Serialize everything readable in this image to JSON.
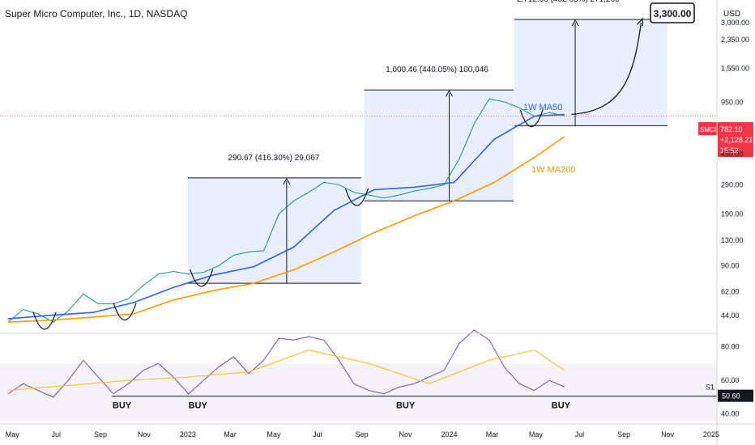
{
  "header": {
    "symbol_title": "Super Micro Computer, Inc., 1D, NASDAQ",
    "currency": "USD"
  },
  "chart_data": [
    {
      "type": "line",
      "title": "Super Micro Computer, Inc., 1D, NASDAQ",
      "yscale": "log",
      "x_ticks": [
        "May",
        "Jul",
        "Sep",
        "Nov",
        "2023",
        "Mar",
        "May",
        "Jul",
        "Sep",
        "Nov",
        "2024",
        "Mar",
        "May",
        "Jul",
        "Sep",
        "Nov",
        "2025"
      ],
      "y_ticks": [
        44,
        62,
        90,
        130,
        190,
        290,
        450,
        950,
        1550,
        2350,
        3000
      ],
      "y_tick_labels": [
        "44.00",
        "62.00",
        "90.00",
        "130.00",
        "190.00",
        "290.00",
        "450.00",
        "950.00",
        "1,550.00",
        "2,350.00",
        "3,000.00"
      ],
      "ylim": [
        34,
        3300
      ],
      "grid": false,
      "series": [
        {
          "name": "SMCI",
          "color": "#089981",
          "x": [
            "2022-04-25",
            "2022-05-16",
            "2022-06-06",
            "2022-06-27",
            "2022-07-18",
            "2022-08-08",
            "2022-08-29",
            "2022-09-19",
            "2022-10-10",
            "2022-10-31",
            "2022-11-21",
            "2022-12-12",
            "2023-01-02",
            "2023-01-23",
            "2023-02-13",
            "2023-03-06",
            "2023-03-27",
            "2023-04-17",
            "2023-05-08",
            "2023-05-29",
            "2023-06-19",
            "2023-07-10",
            "2023-07-31",
            "2023-08-21",
            "2023-09-11",
            "2023-10-02",
            "2023-10-23",
            "2023-11-13",
            "2023-12-04",
            "2023-12-25",
            "2024-01-15",
            "2024-02-05",
            "2024-02-26",
            "2024-03-18",
            "2024-04-08",
            "2024-04-29",
            "2024-05-20",
            "2024-06-10"
          ],
          "y": [
            40,
            48,
            45,
            40,
            47,
            60,
            52,
            52,
            56,
            68,
            80,
            83,
            80,
            82,
            90,
            105,
            110,
            112,
            190,
            230,
            260,
            300,
            290,
            260,
            250,
            240,
            250,
            265,
            275,
            290,
            420,
            700,
            1000,
            960,
            880,
            780,
            820,
            782
          ]
        },
        {
          "name": "1W MA50",
          "color": "#2962ff",
          "x": [
            "2022-04-25",
            "2022-06-20",
            "2022-08-22",
            "2022-10-17",
            "2022-12-12",
            "2023-02-06",
            "2023-04-03",
            "2023-05-29",
            "2023-07-24",
            "2023-09-18",
            "2023-11-13",
            "2024-01-08",
            "2024-03-04",
            "2024-04-29",
            "2024-06-10"
          ],
          "y": [
            42,
            44,
            46,
            53,
            66,
            79,
            89,
            118,
            200,
            270,
            280,
            300,
            560,
            780,
            800
          ]
        },
        {
          "name": "1W MA200",
          "color": "#ff9800",
          "x": [
            "2022-04-25",
            "2022-06-20",
            "2022-08-22",
            "2022-10-17",
            "2022-12-12",
            "2023-02-06",
            "2023-04-03",
            "2023-05-29",
            "2023-07-24",
            "2023-09-18",
            "2023-11-13",
            "2024-01-08",
            "2024-03-04",
            "2024-04-29",
            "2024-06-10"
          ],
          "y": [
            40,
            41,
            43,
            45,
            55,
            63,
            70,
            85,
            110,
            145,
            185,
            230,
            300,
            430,
            580
          ]
        }
      ],
      "annotations": {
        "ranges": [
          {
            "label": "290.67 (416.30%) 29,067",
            "low": 70,
            "high": 320
          },
          {
            "label": "1,000.46 (440.05%) 100,046",
            "low": 230,
            "high": 1140
          },
          {
            "label": "2,712.66 (402.65%) 271,266",
            "low": 680,
            "high": 3150
          }
        ],
        "target_label": "3,300.00",
        "ma50_label": "1W MA50",
        "ma200_label": "1W MA200",
        "price_badge": {
          "symbol": "SMCI",
          "price": "782.10",
          "change": "+2,128.21%",
          "time": "15:52"
        }
      }
    },
    {
      "type": "line",
      "title": "",
      "y_ticks": [
        40,
        60,
        80
      ],
      "y_tick_labels": [
        "40.00",
        "60.00",
        "80.00"
      ],
      "ylim": [
        36,
        87
      ],
      "band": [
        30,
        70
      ],
      "support_level": 50.6,
      "support_label": "50.60",
      "support_name": "S1",
      "buy_labels": [
        "BUY",
        "BUY",
        "BUY",
        "BUY"
      ],
      "series": [
        {
          "name": "RSI",
          "color": "#7e57c2",
          "x": [
            "2022-04-25",
            "2022-05-16",
            "2022-06-06",
            "2022-06-27",
            "2022-07-18",
            "2022-08-08",
            "2022-08-29",
            "2022-09-19",
            "2022-10-10",
            "2022-10-31",
            "2022-11-21",
            "2022-12-12",
            "2023-01-02",
            "2023-01-23",
            "2023-02-13",
            "2023-03-06",
            "2023-03-27",
            "2023-04-17",
            "2023-05-08",
            "2023-05-29",
            "2023-06-19",
            "2023-07-10",
            "2023-07-31",
            "2023-08-21",
            "2023-09-11",
            "2023-10-02",
            "2023-10-23",
            "2023-11-13",
            "2023-12-04",
            "2023-12-25",
            "2024-01-15",
            "2024-02-05",
            "2024-02-26",
            "2024-03-18",
            "2024-04-08",
            "2024-04-29",
            "2024-05-20",
            "2024-06-10"
          ],
          "y": [
            52,
            58,
            54,
            50,
            60,
            72,
            62,
            52,
            58,
            66,
            70,
            62,
            52,
            60,
            68,
            74,
            64,
            72,
            85,
            84,
            86,
            84,
            72,
            58,
            54,
            52,
            56,
            58,
            62,
            66,
            82,
            90,
            84,
            68,
            58,
            54,
            60,
            56
          ]
        },
        {
          "name": "RSI MA",
          "color": "#fbc02d",
          "x": [
            "2022-04-25",
            "2022-07-18",
            "2022-10-10",
            "2023-01-02",
            "2023-03-27",
            "2023-06-19",
            "2023-09-11",
            "2023-12-04",
            "2024-02-26",
            "2024-04-29",
            "2024-06-10"
          ],
          "y": [
            54,
            57,
            60,
            62,
            65,
            78,
            70,
            58,
            72,
            78,
            66
          ]
        }
      ]
    }
  ]
}
